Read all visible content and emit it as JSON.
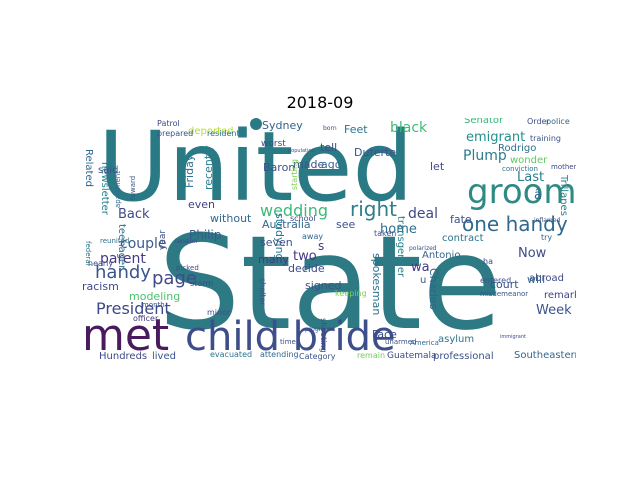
{
  "title": "2018-09",
  "words": [
    {
      "text": "United",
      "color": "#2a7a86"
    },
    {
      "text": "State",
      "color": "#2d7a85"
    },
    {
      "text": "met",
      "color": "#4a1a5e"
    },
    {
      "text": "child bride",
      "color": "#3d4e8a"
    },
    {
      "text": "groom",
      "color": "#2f8a83"
    },
    {
      "text": "wedding",
      "color": "#3db97a"
    },
    {
      "text": "right",
      "color": "#2f7f8a"
    },
    {
      "text": "one handy",
      "color": "#31688e"
    },
    {
      "text": "handy",
      "color": "#3a548c"
    },
    {
      "text": "page",
      "color": "#3f4a8a"
    },
    {
      "text": "President",
      "color": "#3e4989"
    },
    {
      "text": "couple",
      "color": "#3c5a8c"
    },
    {
      "text": "parent",
      "color": "#443a83"
    },
    {
      "text": "Back",
      "color": "#3e4b8a"
    },
    {
      "text": "Plump",
      "color": "#2b7c8e"
    },
    {
      "text": "black",
      "color": "#3dbc74"
    },
    {
      "text": "emigrant",
      "color": "#21918c"
    },
    {
      "text": "home",
      "color": "#2e6f8e"
    },
    {
      "text": "deal",
      "color": "#3f4788"
    },
    {
      "text": "Last",
      "color": "#27808e"
    },
    {
      "text": "Now",
      "color": "#3e4c8a"
    },
    {
      "text": "Week",
      "color": "#3a548c"
    },
    {
      "text": "two",
      "color": "#443983"
    },
    {
      "text": "made",
      "color": "#3b518b"
    },
    {
      "text": "even",
      "color": "#424086"
    },
    {
      "text": "Friday",
      "color": "#2c728e"
    },
    {
      "text": "recently",
      "color": "#287c8e"
    },
    {
      "text": "Baron",
      "color": "#3b528b"
    },
    {
      "text": "Sydney",
      "color": "#33638d"
    },
    {
      "text": "Philip",
      "color": "#375a8c"
    },
    {
      "text": "Australia",
      "color": "#31688e"
    },
    {
      "text": "Duterte",
      "color": "#3b528b"
    },
    {
      "text": "tell",
      "color": "#3e4a89"
    },
    {
      "text": "ago",
      "color": "#2f6b8e"
    },
    {
      "text": "Feet",
      "color": "#2b748e"
    },
    {
      "text": "see",
      "color": "#3a538b"
    },
    {
      "text": "wa",
      "color": "#443983"
    },
    {
      "text": "fate",
      "color": "#3b528b"
    },
    {
      "text": "contract",
      "color": "#2c728e"
    },
    {
      "text": "let",
      "color": "#3e4989"
    },
    {
      "text": "Senator",
      "color": "#35b779"
    },
    {
      "text": "Rodrigo",
      "color": "#2d708e"
    },
    {
      "text": "wonder",
      "color": "#5ec962"
    },
    {
      "text": "Trillanes",
      "color": "#287d8e"
    },
    {
      "text": "abroad",
      "color": "#3e4a89"
    },
    {
      "text": "remark",
      "color": "#414487"
    },
    {
      "text": "court",
      "color": "#3b528b"
    },
    {
      "text": "will",
      "color": "#31688e"
    },
    {
      "text": "Antonio",
      "color": "#32658e"
    },
    {
      "text": "transgender",
      "color": "#25838e"
    },
    {
      "text": "spokesman",
      "color": "#2c728e"
    },
    {
      "text": "Charles",
      "color": "#33628d"
    },
    {
      "text": "Face",
      "color": "#3e4989"
    },
    {
      "text": "signed",
      "color": "#3b528b"
    },
    {
      "text": "decide",
      "color": "#3e4a89"
    },
    {
      "text": "studying",
      "color": "#2a788e"
    },
    {
      "text": "many",
      "color": "#443983"
    },
    {
      "text": "seven",
      "color": "#3b528b"
    },
    {
      "text": "without",
      "color": "#31688e"
    },
    {
      "text": "modeling",
      "color": "#4ac16d"
    },
    {
      "text": "racism",
      "color": "#3e4989"
    },
    {
      "text": "teenager",
      "color": "#2c728e"
    },
    {
      "text": "newsletter",
      "color": "#27808e"
    },
    {
      "text": "Related",
      "color": "#31688e"
    },
    {
      "text": "said",
      "color": "#3b528b"
    },
    {
      "text": "deported",
      "color": "#b5de2b"
    },
    {
      "text": "Hundreds",
      "color": "#3e4a89"
    },
    {
      "text": "lived",
      "color": "#3a548c"
    },
    {
      "text": "asylum",
      "color": "#2c728e"
    },
    {
      "text": "professional",
      "color": "#3b528b"
    },
    {
      "text": "Southeastern",
      "color": "#31688e"
    },
    {
      "text": "Guatemala",
      "color": "#3e4989"
    },
    {
      "text": "Category",
      "color": "#3b528b"
    },
    {
      "text": "remain",
      "color": "#6ece58"
    },
    {
      "text": "attending",
      "color": "#31688e"
    },
    {
      "text": "evacuated",
      "color": "#2c728e"
    },
    {
      "text": "shooting",
      "color": "#3e4a89"
    },
    {
      "text": "minor",
      "color": "#3b528b"
    },
    {
      "text": "officer",
      "color": "#443983"
    },
    {
      "text": "storm",
      "color": "#3e4989"
    },
    {
      "text": "entered",
      "color": "#3b528b"
    },
    {
      "text": "Order",
      "color": "#3e4989"
    },
    {
      "text": "police",
      "color": "#31688e"
    },
    {
      "text": "training",
      "color": "#3b528b"
    },
    {
      "text": "conviction",
      "color": "#2c728e"
    },
    {
      "text": "mother",
      "color": "#3e4a89"
    },
    {
      "text": "misdemeanor",
      "color": "#3b528b"
    },
    {
      "text": "America",
      "color": "#31688e"
    },
    {
      "text": "unarmed",
      "color": "#3b528b"
    },
    {
      "text": "school",
      "color": "#3e4989"
    },
    {
      "text": "taken",
      "color": "#3b528b"
    },
    {
      "text": "keeping",
      "color": "#7ad151"
    },
    {
      "text": "away",
      "color": "#31688e"
    },
    {
      "text": "nearly",
      "color": "#3e4989"
    },
    {
      "text": "year",
      "color": "#3b528b"
    },
    {
      "text": "worst",
      "color": "#3e4989"
    },
    {
      "text": "resident",
      "color": "#2c728e"
    },
    {
      "text": "prepared",
      "color": "#3b528b"
    },
    {
      "text": "Patrol",
      "color": "#3e4989"
    },
    {
      "text": "apartment",
      "color": "#31688e"
    },
    {
      "text": "toward",
      "color": "#3b528b"
    },
    {
      "text": "picked",
      "color": "#3e4a89"
    },
    {
      "text": "month",
      "color": "#3b528b"
    },
    {
      "text": "reunited",
      "color": "#2c728e"
    },
    {
      "text": "tension",
      "color": "#3e4989"
    },
    {
      "text": "program",
      "color": "#3b528b"
    },
    {
      "text": "ha",
      "color": "#3e4989"
    },
    {
      "text": "try",
      "color": "#31688e"
    },
    {
      "text": "inflamed",
      "color": "#3b528b"
    },
    {
      "text": "federal",
      "color": "#2c728e"
    },
    {
      "text": "time",
      "color": "#3e4989"
    },
    {
      "text": "shelter",
      "color": "#3b528b"
    },
    {
      "text": "born",
      "color": "#3e4a89"
    },
    {
      "text": "starting",
      "color": "#7ad151"
    },
    {
      "text": "polarized",
      "color": "#3b528b"
    },
    {
      "text": "â",
      "color": "#31688e"
    },
    {
      "text": "s",
      "color": "#443983"
    },
    {
      "text": "u",
      "color": "#3b528b"
    },
    {
      "text": "immigrant",
      "color": "#3e4989"
    },
    {
      "text": "population",
      "color": "#3b528b"
    }
  ]
}
